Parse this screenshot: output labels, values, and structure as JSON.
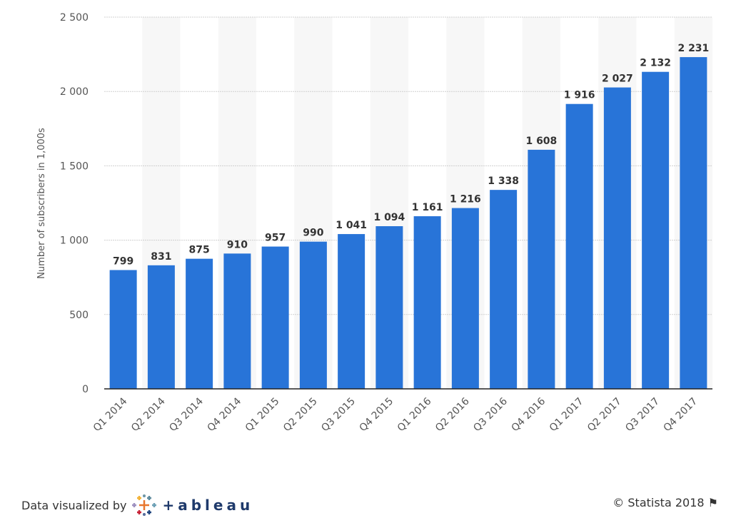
{
  "chart_data": {
    "type": "bar",
    "categories": [
      "Q1 2014",
      "Q2 2014",
      "Q3 2014",
      "Q4 2014",
      "Q1 2015",
      "Q2 2015",
      "Q3 2015",
      "Q4 2015",
      "Q1 2016",
      "Q2 2016",
      "Q3 2016",
      "Q4 2016",
      "Q1 2017",
      "Q2 2017",
      "Q3 2017",
      "Q4 2017"
    ],
    "values": [
      799,
      831,
      875,
      910,
      957,
      990,
      1041,
      1094,
      1161,
      1216,
      1338,
      1608,
      1916,
      2027,
      2132,
      2231
    ],
    "value_labels": [
      "799",
      "831",
      "875",
      "910",
      "957",
      "990",
      "1 041",
      "1 094",
      "1 161",
      "1 216",
      "1 338",
      "1 608",
      "1 916",
      "2 027",
      "2 132",
      "2 231"
    ],
    "title": "",
    "xlabel": "",
    "ylabel": "Number of subscribers in 1,000s",
    "ylim": [
      0,
      2500
    ],
    "yticks": [
      0,
      500,
      1000,
      1500,
      2000,
      2500
    ],
    "ytick_labels": [
      "0",
      "500",
      "1 000",
      "1 500",
      "2 000",
      "2 500"
    ],
    "grid": true,
    "bar_color": "#2874d8",
    "band_color": "#f7f7f7"
  },
  "footer": {
    "credit": "Data visualized by",
    "logo_text": "+ableau",
    "copyright": "© Statista 2018"
  }
}
